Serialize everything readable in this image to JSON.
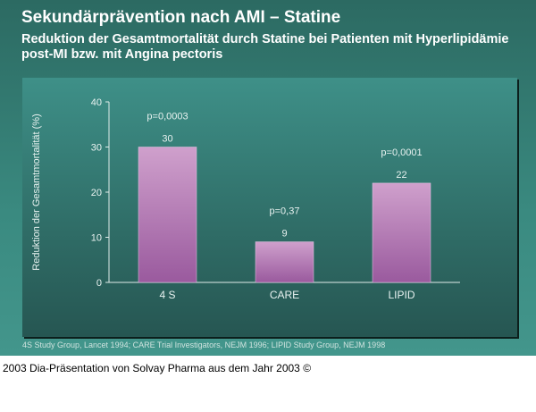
{
  "slide": {
    "title": "Sekundärprävention nach AMI – Statine",
    "subtitle": "Reduktion der Gesamtmortalität durch Statine bei Patienten mit Hyperlipidämie post-MI bzw. mit Angina pectoris",
    "source": "4S Study Group, Lancet 1994; CARE Trial Investigators, NEJM 1996; LIPID Study Group, NEJM 1998"
  },
  "caption": "2003 Dia-Präsentation von Solvay Pharma aus dem Jahr 2003 ©",
  "chart_data": {
    "type": "bar",
    "categories": [
      "4 S",
      "CARE",
      "LIPID"
    ],
    "values": [
      30,
      9,
      22
    ],
    "data_labels": [
      "30",
      "9",
      "22"
    ],
    "annotations": [
      "p=0,0003",
      "p=0,37",
      "p=0,0001"
    ],
    "ylabel": "Reduktion der Gesamtmortalität (%)",
    "xlabel": "",
    "ylim": [
      0,
      40
    ],
    "yticks": [
      0,
      10,
      20,
      30,
      40
    ],
    "grid": false,
    "colors": {
      "bar_top": "#cfa0cc",
      "bar_bottom": "#9a5a9e",
      "axis": "#e0ecea",
      "text": "#e8f2f0"
    }
  }
}
